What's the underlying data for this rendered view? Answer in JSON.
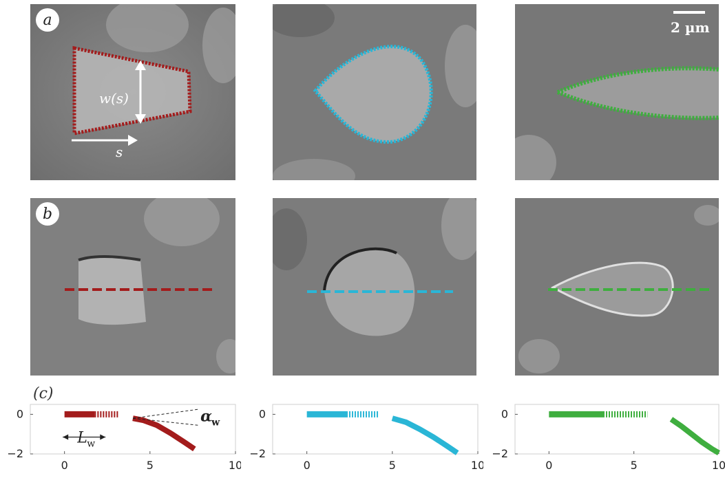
{
  "figure": {
    "row_labels": {
      "a": "a",
      "b": "b",
      "c": "(c)"
    },
    "scale_bar": "2 µm",
    "annotations": {
      "width": "w(s)",
      "arclength": "s",
      "length": "L",
      "length_sub": "w",
      "angle": "α",
      "angle_sub": "w"
    }
  },
  "colors": {
    "red": "#a31c1c",
    "cyan": "#2ab6d6",
    "green": "#3fae3f"
  },
  "chart_data": [
    {
      "type": "line",
      "color": "#a31c1c",
      "xlim": [
        -2,
        10
      ],
      "ylim": [
        -2,
        0.5
      ],
      "xticks": [
        0,
        5,
        10
      ],
      "yticks": [
        0,
        -2
      ],
      "xtick_labels": [
        "0",
        "5",
        "10"
      ],
      "ytick_labels": [
        "0",
        "−2"
      ],
      "series": [
        {
          "x": [
            0,
            3.2
          ],
          "y": [
            0,
            0
          ]
        },
        {
          "x": [
            4.0,
            4.6,
            5.4,
            6.2,
            7.0,
            7.6
          ],
          "y": [
            -0.2,
            -0.3,
            -0.55,
            -0.95,
            -1.4,
            -1.75
          ]
        }
      ]
    },
    {
      "type": "line",
      "color": "#2ab6d6",
      "xlim": [
        -2,
        10
      ],
      "ylim": [
        -2,
        0.5
      ],
      "xticks": [
        0,
        5,
        10
      ],
      "yticks": [
        0,
        -2
      ],
      "xtick_labels": [
        "0",
        "5",
        "10"
      ],
      "ytick_labels": [
        "0",
        "−2"
      ],
      "series": [
        {
          "x": [
            0,
            4.2
          ],
          "y": [
            0,
            0
          ]
        },
        {
          "x": [
            5.0,
            5.8,
            6.6,
            7.4,
            8.2,
            8.8
          ],
          "y": [
            -0.2,
            -0.4,
            -0.75,
            -1.15,
            -1.6,
            -1.95
          ]
        }
      ]
    },
    {
      "type": "line",
      "color": "#3fae3f",
      "xlim": [
        -2,
        10
      ],
      "ylim": [
        -2,
        0.5
      ],
      "xticks": [
        0,
        5,
        10
      ],
      "yticks": [
        0,
        -2
      ],
      "xtick_labels": [
        "0",
        "5",
        "10"
      ],
      "ytick_labels": [
        "0",
        "−2"
      ],
      "series": [
        {
          "x": [
            0,
            5.8
          ],
          "y": [
            0,
            0
          ]
        },
        {
          "x": [
            7.2,
            7.8,
            8.4,
            9.0,
            9.6,
            10
          ],
          "y": [
            -0.25,
            -0.6,
            -1.0,
            -1.4,
            -1.75,
            -1.95
          ]
        }
      ]
    }
  ]
}
